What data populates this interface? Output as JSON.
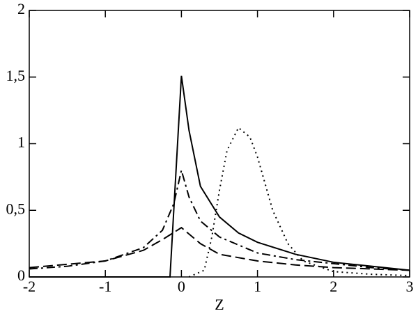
{
  "chart_data": {
    "type": "line",
    "x_label": "Z",
    "xlim": [
      -2,
      3
    ],
    "xticks": [
      -2,
      -1,
      0,
      1,
      2,
      3
    ],
    "ylim": [
      0,
      2
    ],
    "yticks": [
      0,
      {
        "value": 0.5,
        "label": "0,5"
      },
      1,
      {
        "value": 1.5,
        "label": "1,5"
      },
      2
    ],
    "grid": false,
    "series": [
      {
        "color": "#000000",
        "dash": "solid",
        "x": [
          -2,
          -0.15,
          0,
          0.1,
          0.25,
          0.5,
          0.75,
          1,
          1.5,
          2,
          2.5,
          3
        ],
        "values": [
          0,
          0,
          1.51,
          1.1,
          0.68,
          0.45,
          0.33,
          0.26,
          0.17,
          0.11,
          0.08,
          0.05
        ]
      },
      {
        "color": "#000000",
        "dash": "dashdot",
        "x": [
          -2,
          -1.5,
          -1,
          -0.5,
          -0.25,
          -0.1,
          0,
          0.1,
          0.25,
          0.5,
          1,
          1.5,
          2,
          2.5,
          3
        ],
        "values": [
          0.06,
          0.08,
          0.12,
          0.22,
          0.35,
          0.55,
          0.8,
          0.6,
          0.42,
          0.3,
          0.18,
          0.13,
          0.1,
          0.07,
          0.05
        ]
      },
      {
        "color": "#000000",
        "dash": "dashed",
        "x": [
          -2,
          -1,
          -0.5,
          -0.25,
          0,
          0.25,
          0.5,
          1,
          1.5,
          2,
          3
        ],
        "values": [
          0.07,
          0.12,
          0.2,
          0.28,
          0.37,
          0.25,
          0.17,
          0.12,
          0.09,
          0.07,
          0.05
        ]
      },
      {
        "color": "#000000",
        "dash": "dotted",
        "x": [
          0.1,
          0.3,
          0.4,
          0.5,
          0.6,
          0.75,
          0.9,
          1,
          1.2,
          1.4,
          1.6,
          2,
          2.5,
          3
        ],
        "values": [
          0,
          0.05,
          0.3,
          0.65,
          0.95,
          1.12,
          1.05,
          0.9,
          0.5,
          0.25,
          0.12,
          0.04,
          0.02,
          0.01
        ]
      }
    ]
  }
}
